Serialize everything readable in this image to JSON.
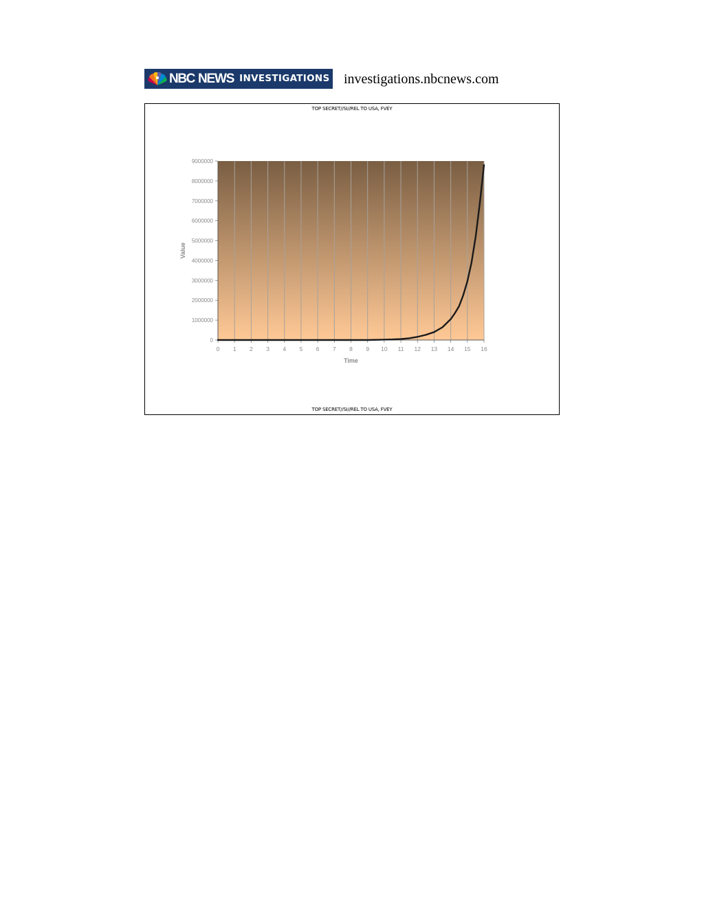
{
  "header": {
    "logo_nbc": "NBC",
    "logo_news": "NEWS",
    "logo_investigations": "INVESTIGATIONS",
    "url": "investigations.nbcnews.com"
  },
  "slide": {
    "classification_top": "TOP SECRET//SI//REL TO USA, FVEY",
    "classification_bottom": "TOP SECRET//SI//REL TO USA, FVEY"
  },
  "colors": {
    "plot_top": "#7a5e43",
    "plot_bottom": "#ffc996",
    "line": "#1a1a1a",
    "grid": "#a6a29c",
    "logo_bg": "#1b3a6b"
  },
  "chart_data": {
    "type": "line",
    "title": "",
    "xlabel": "Time",
    "ylabel": "Value",
    "xlim": [
      0,
      16
    ],
    "ylim": [
      0,
      9000000
    ],
    "x_ticks": [
      0,
      1,
      2,
      3,
      4,
      5,
      6,
      7,
      8,
      9,
      10,
      11,
      12,
      13,
      14,
      15,
      16
    ],
    "y_ticks": [
      0,
      1000000,
      2000000,
      3000000,
      4000000,
      5000000,
      6000000,
      7000000,
      8000000,
      9000000
    ],
    "grid": "vertical",
    "legend": "none",
    "series": [
      {
        "x": [
          0,
          1,
          2,
          3,
          4,
          5,
          6,
          7,
          8,
          9,
          10,
          10.5,
          11,
          11.5,
          12,
          12.5,
          13,
          13.5,
          14,
          14.25,
          14.5,
          14.75,
          15,
          15.25,
          15.5,
          15.75,
          16
        ],
        "values": [
          0,
          0,
          0,
          0,
          0,
          0,
          0,
          0,
          0,
          0,
          20000,
          30000,
          50000,
          90000,
          160000,
          260000,
          400000,
          640000,
          1050000,
          1350000,
          1700000,
          2250000,
          2950000,
          3900000,
          5200000,
          6900000,
          8800000
        ]
      }
    ]
  }
}
